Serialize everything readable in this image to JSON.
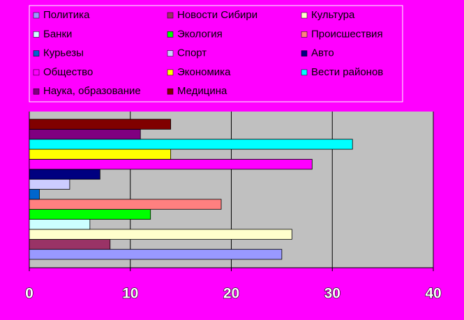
{
  "chart_data": {
    "type": "bar",
    "orientation": "horizontal",
    "categories": [
      null
    ],
    "series": [
      {
        "name": "Политика",
        "color": "#9999ff",
        "values": [
          25
        ]
      },
      {
        "name": "Новости Сибири",
        "color": "#993366",
        "values": [
          8
        ]
      },
      {
        "name": "Культура",
        "color": "#ffffcc",
        "values": [
          26
        ]
      },
      {
        "name": "Банки",
        "color": "#ccffff",
        "values": [
          6
        ]
      },
      {
        "name": "Экология",
        "color": "#00ff00",
        "values": [
          12
        ]
      },
      {
        "name": "Происшествия",
        "color": "#ff8080",
        "values": [
          19
        ]
      },
      {
        "name": "Курьезы",
        "color": "#0066cc",
        "values": [
          1
        ]
      },
      {
        "name": "Спорт",
        "color": "#ccccff",
        "values": [
          4
        ]
      },
      {
        "name": "Авто",
        "color": "#000080",
        "values": [
          7
        ]
      },
      {
        "name": "Общество",
        "color": "#ff00ff",
        "values": [
          28
        ]
      },
      {
        "name": "Экономика",
        "color": "#ffff00",
        "values": [
          14
        ]
      },
      {
        "name": "Вести районов",
        "color": "#00ffff",
        "values": [
          32
        ]
      },
      {
        "name": "Наука, образование",
        "color": "#800080",
        "values": [
          11
        ]
      },
      {
        "name": "Медицина",
        "color": "#800000",
        "values": [
          14
        ]
      }
    ],
    "xlim": [
      0,
      40
    ],
    "xticks": [
      0,
      10,
      20,
      30,
      40
    ],
    "grid": true,
    "legend": "top"
  }
}
